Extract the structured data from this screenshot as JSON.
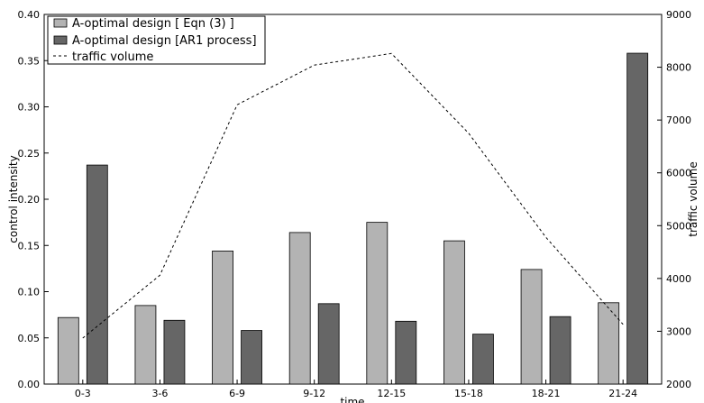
{
  "chart_data": {
    "type": "bar",
    "xlabel": "time",
    "ylabel": "control intensity",
    "y2label": "traffic volume",
    "categories": [
      "0-3",
      "3-6",
      "6-9",
      "9-12",
      "12-15",
      "15-18",
      "18-21",
      "21-24"
    ],
    "ylim": [
      0,
      0.4
    ],
    "y2lim": [
      2000,
      9000
    ],
    "yticks": [
      "0.00",
      "0.05",
      "0.10",
      "0.15",
      "0.20",
      "0.25",
      "0.30",
      "0.35",
      "0.40"
    ],
    "y2ticks": [
      "2000",
      "3000",
      "4000",
      "5000",
      "6000",
      "7000",
      "8000",
      "9000"
    ],
    "grid": false,
    "legend_position": "top-left",
    "series": [
      {
        "name": "A-optimal design [ Eqn (3) ]",
        "kind": "bar",
        "color": "#b3b3b3",
        "values": [
          0.072,
          0.085,
          0.144,
          0.164,
          0.175,
          0.155,
          0.124,
          0.088
        ]
      },
      {
        "name": "A-optimal design [AR1 process]",
        "kind": "bar",
        "color": "#666666",
        "values": [
          0.237,
          0.069,
          0.058,
          0.087,
          0.068,
          0.054,
          0.073,
          0.358
        ]
      },
      {
        "name": "traffic volume",
        "kind": "line",
        "axis": "right",
        "style": "dashed",
        "color": "#000000",
        "values": [
          2870,
          4060,
          7290,
          8040,
          8260,
          6750,
          4780,
          3130
        ]
      }
    ]
  }
}
